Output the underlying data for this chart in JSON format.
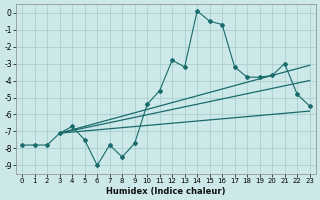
{
  "xlabel": "Humidex (Indice chaleur)",
  "bg_color": "#cce8e8",
  "grid_color": "#aacfcf",
  "line_color": "#1a6b6b",
  "main_x": [
    0,
    1,
    2,
    3,
    4,
    5,
    6,
    7,
    8,
    9,
    10,
    11,
    12,
    13,
    14,
    15,
    16,
    17,
    18,
    19,
    20,
    21,
    22,
    23
  ],
  "main_y": [
    -7.8,
    -7.8,
    -7.8,
    -7.1,
    -6.7,
    -7.5,
    -9.0,
    -7.8,
    -8.5,
    -7.7,
    -5.4,
    -4.6,
    -2.8,
    -3.2,
    0.1,
    -0.5,
    -0.7,
    -3.2,
    -3.8,
    -3.8,
    -3.7,
    -3.0,
    -4.8,
    -5.5
  ],
  "trend1_x": [
    3,
    23
  ],
  "trend1_y": [
    -7.1,
    -3.1
  ],
  "trend2_x": [
    3,
    23
  ],
  "trend2_y": [
    -7.1,
    -4.0
  ],
  "trend3_x": [
    3,
    23
  ],
  "trend3_y": [
    -7.1,
    -5.8
  ],
  "xlim": [
    -0.5,
    23.5
  ],
  "ylim": [
    -9.5,
    0.5
  ],
  "xticks": [
    0,
    1,
    2,
    3,
    4,
    5,
    6,
    7,
    8,
    9,
    10,
    11,
    12,
    13,
    14,
    15,
    16,
    17,
    18,
    19,
    20,
    21,
    22,
    23
  ],
  "yticks": [
    0,
    -1,
    -2,
    -3,
    -4,
    -5,
    -6,
    -7,
    -8,
    -9
  ]
}
